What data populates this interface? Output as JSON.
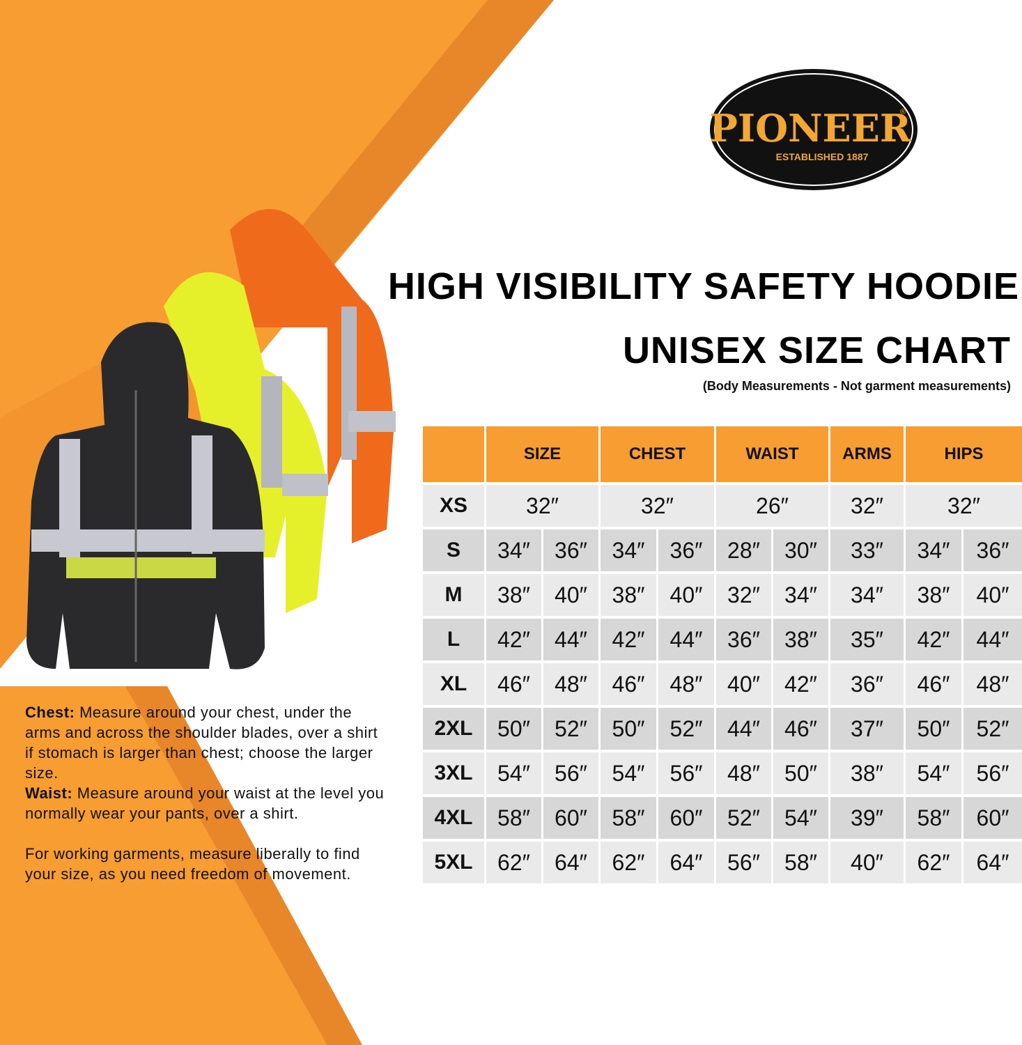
{
  "brand": {
    "name": "PIONEER",
    "tagline": "ESTABLISHED 1887",
    "registered": "®"
  },
  "title_line1": "HIGH VISIBILITY SAFETY HOODIE",
  "title_line2": "UNISEX SIZE CHART",
  "subtitle": "(Body Measurements - Not garment measurements)",
  "colors": {
    "accent_orange": "#f79d31",
    "dark_orange": "#e8862a",
    "row_light": "#eaeaea",
    "row_dark": "#d7d7d7"
  },
  "table": {
    "headers": [
      "SIZE",
      "CHEST",
      "WAIST",
      "ARMS",
      "HIPS"
    ],
    "rows": [
      {
        "label": "XS",
        "size": [
          "32″"
        ],
        "chest": [
          "32″"
        ],
        "waist": [
          "26″"
        ],
        "arms": "32″",
        "hips": [
          "32″"
        ]
      },
      {
        "label": "S",
        "size": [
          "34″",
          "36″"
        ],
        "chest": [
          "34″",
          "36″"
        ],
        "waist": [
          "28″",
          "30″"
        ],
        "arms": "33″",
        "hips": [
          "34″",
          "36″"
        ]
      },
      {
        "label": "M",
        "size": [
          "38″",
          "40″"
        ],
        "chest": [
          "38″",
          "40″"
        ],
        "waist": [
          "32″",
          "34″"
        ],
        "arms": "34″",
        "hips": [
          "38″",
          "40″"
        ]
      },
      {
        "label": "L",
        "size": [
          "42″",
          "44″"
        ],
        "chest": [
          "42″",
          "44″"
        ],
        "waist": [
          "36″",
          "38″"
        ],
        "arms": "35″",
        "hips": [
          "42″",
          "44″"
        ]
      },
      {
        "label": "XL",
        "size": [
          "46″",
          "48″"
        ],
        "chest": [
          "46″",
          "48″"
        ],
        "waist": [
          "40″",
          "42″"
        ],
        "arms": "36″",
        "hips": [
          "46″",
          "48″"
        ]
      },
      {
        "label": "2XL",
        "size": [
          "50″",
          "52″"
        ],
        "chest": [
          "50″",
          "52″"
        ],
        "waist": [
          "44″",
          "46″"
        ],
        "arms": "37″",
        "hips": [
          "50″",
          "52″"
        ]
      },
      {
        "label": "3XL",
        "size": [
          "54″",
          "56″"
        ],
        "chest": [
          "54″",
          "56″"
        ],
        "waist": [
          "48″",
          "50″"
        ],
        "arms": "38″",
        "hips": [
          "54″",
          "56″"
        ]
      },
      {
        "label": "4XL",
        "size": [
          "58″",
          "60″"
        ],
        "chest": [
          "58″",
          "60″"
        ],
        "waist": [
          "52″",
          "54″"
        ],
        "arms": "39″",
        "hips": [
          "58″",
          "60″"
        ]
      },
      {
        "label": "5XL",
        "size": [
          "62″",
          "64″"
        ],
        "chest": [
          "62″",
          "64″"
        ],
        "waist": [
          "56″",
          "58″"
        ],
        "arms": "40″",
        "hips": [
          "62″",
          "64″"
        ]
      }
    ]
  },
  "notes": {
    "chest_label": "Chest:",
    "chest_text": " Measure around your chest, under the arms and across the shoulder blades, over a shirt if stomach is larger than chest; choose the larger size.",
    "waist_label": "Waist:",
    "waist_text": " Measure around your waist at the level you normally wear your pants, over a shirt.",
    "general": "For working garments, measure liberally to find your size, as you need freedom of movement."
  }
}
